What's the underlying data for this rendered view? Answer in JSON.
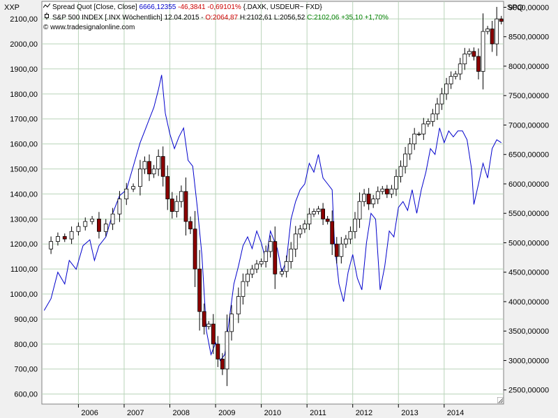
{
  "corner_left": "XXP",
  "corner_right": "SPQ",
  "legend": {
    "spread": {
      "name": "Spread Quot [Close, Close]",
      "value": "6666,12355",
      "change": "-46,3841",
      "change_pct": "-0,69101%",
      "formula": "{.DAXK, USDEUR~ FXD}"
    },
    "sp500": {
      "name": "S&P 500 INDEX [.INX Wöchentlich]",
      "date": "12.04.2015",
      "open": "O:2064,87",
      "high": "H:2102,61",
      "low": "L:2056,52",
      "close": "C:2102,06",
      "change": "+35,10",
      "change_pct": "+1,70%"
    },
    "copyright": "© www.tradesignalonline.com"
  },
  "colors": {
    "background": "#ffffff",
    "grid": "#b9d4b9",
    "spread_line": "#0000cc",
    "candle_up": "#ffffff",
    "candle_down": "#8b0000",
    "candle_border": "#000000"
  },
  "chart_data": {
    "type": "line",
    "left_axis": {
      "label": "XXP",
      "range": [
        560,
        2170
      ],
      "ticks": [
        "2100,00",
        "2000,00",
        "1900,00",
        "1800,00",
        "1700,00",
        "1600,00",
        "1500,00",
        "1400,00",
        "1300,00",
        "1200,00",
        "1100,00",
        "1000,00",
        "900,00",
        "800,00",
        "700,00",
        "600,00"
      ]
    },
    "right_axis": {
      "label": "SPQ",
      "range": [
        2260,
        9100
      ],
      "ticks": [
        "9000,00000",
        "8500,00000",
        "8000,00000",
        "7500,00000",
        "7000,00000",
        "6500,00000",
        "6000,00000",
        "5500,00000",
        "5000,00000",
        "4500,00000",
        "4000,00000",
        "3500,00000",
        "3000,00000",
        "2500,00000"
      ]
    },
    "x_axis": {
      "range": [
        2005.2,
        2015.3
      ],
      "tick_labels": [
        "2006",
        "2007",
        "2008",
        "2009",
        "2010",
        "2011",
        "2012",
        "2013",
        "2014"
      ]
    },
    "grid": true,
    "series": [
      {
        "name": "Spread Quot [Close, Close]",
        "axis": "right",
        "style": "line",
        "x": [
          2005.25,
          2005.4,
          2005.55,
          2005.7,
          2005.8,
          2005.95,
          2006.1,
          2006.25,
          2006.35,
          2006.45,
          2006.6,
          2006.75,
          2006.9,
          2007.05,
          2007.2,
          2007.35,
          2007.45,
          2007.55,
          2007.65,
          2007.75,
          2007.82,
          2007.9,
          2008.0,
          2008.1,
          2008.2,
          2008.3,
          2008.4,
          2008.5,
          2008.6,
          2008.7,
          2008.8,
          2008.9,
          2009.0,
          2009.1,
          2009.2,
          2009.3,
          2009.4,
          2009.5,
          2009.6,
          2009.7,
          2009.8,
          2009.9,
          2010.0,
          2010.1,
          2010.2,
          2010.35,
          2010.45,
          2010.55,
          2010.65,
          2010.75,
          2010.85,
          2010.95,
          2011.05,
          2011.15,
          2011.25,
          2011.35,
          2011.45,
          2011.55,
          2011.6,
          2011.7,
          2011.8,
          2011.9,
          2012.0,
          2012.1,
          2012.2,
          2012.3,
          2012.4,
          2012.5,
          2012.6,
          2012.7,
          2012.8,
          2012.9,
          2013.0,
          2013.1,
          2013.2,
          2013.3,
          2013.4,
          2013.5,
          2013.6,
          2013.7,
          2013.8,
          2013.9,
          2014.0,
          2014.1,
          2014.2,
          2014.3,
          2014.4,
          2014.5,
          2014.6,
          2014.65,
          2014.75,
          2014.85,
          2014.95,
          2015.05,
          2015.15,
          2015.25
        ],
        "y": [
          3850,
          4050,
          4500,
          4300,
          4700,
          4550,
          4950,
          5050,
          4700,
          4950,
          5100,
          5500,
          5800,
          5900,
          6300,
          6700,
          6900,
          7100,
          7300,
          7600,
          7850,
          7200,
          6850,
          6600,
          6800,
          6950,
          6400,
          6300,
          5600,
          4800,
          3500,
          3100,
          3300,
          3000,
          3100,
          3700,
          4300,
          4600,
          4950,
          5100,
          4900,
          5200,
          5000,
          4700,
          5200,
          4900,
          4500,
          4700,
          5400,
          5700,
          5900,
          6000,
          6350,
          6200,
          6500,
          6100,
          6000,
          5900,
          5000,
          4300,
          4000,
          4500,
          4800,
          4400,
          4200,
          5000,
          5500,
          5400,
          4200,
          4600,
          5200,
          5100,
          5600,
          5700,
          5550,
          5900,
          5500,
          5900,
          6200,
          6600,
          6500,
          6950,
          6700,
          6900,
          6800,
          6900,
          6900,
          6750,
          6250,
          5650,
          6000,
          6350,
          6100,
          6600,
          6750,
          6700
        ]
      },
      {
        "name": "S&P 500 INDEX [.INX Wöchentlich]",
        "axis": "left",
        "style": "candlestick",
        "x": [
          2005.25,
          2005.4,
          2005.55,
          2005.7,
          2005.85,
          2006.0,
          2006.15,
          2006.3,
          2006.45,
          2006.6,
          2006.75,
          2006.9,
          2007.05,
          2007.2,
          2007.35,
          2007.45,
          2007.55,
          2007.65,
          2007.75,
          2007.85,
          2007.95,
          2008.05,
          2008.15,
          2008.25,
          2008.35,
          2008.45,
          2008.55,
          2008.65,
          2008.75,
          2008.85,
          2008.95,
          2009.05,
          2009.15,
          2009.25,
          2009.35,
          2009.5,
          2009.6,
          2009.7,
          2009.8,
          2009.9,
          2010.0,
          2010.1,
          2010.2,
          2010.3,
          2010.45,
          2010.55,
          2010.65,
          2010.75,
          2010.85,
          2010.95,
          2011.05,
          2011.15,
          2011.25,
          2011.35,
          2011.45,
          2011.55,
          2011.65,
          2011.75,
          2011.85,
          2011.95,
          2012.05,
          2012.15,
          2012.25,
          2012.35,
          2012.45,
          2012.55,
          2012.65,
          2012.75,
          2012.85,
          2012.95,
          2013.05,
          2013.15,
          2013.25,
          2013.35,
          2013.45,
          2013.55,
          2013.65,
          2013.75,
          2013.85,
          2013.95,
          2014.05,
          2014.15,
          2014.25,
          2014.35,
          2014.45,
          2014.55,
          2014.65,
          2014.75,
          2014.85,
          2014.95,
          2015.05,
          2015.15,
          2015.25
        ],
        "y": [
          1180,
          1210,
          1230,
          1220,
          1250,
          1270,
          1290,
          1300,
          1250,
          1280,
          1320,
          1380,
          1420,
          1430,
          1500,
          1530,
          1480,
          1500,
          1550,
          1470,
          1380,
          1330,
          1370,
          1410,
          1290,
          1260,
          1100,
          930,
          870,
          880,
          800,
          740,
          700,
          850,
          920,
          990,
          1050,
          1080,
          1100,
          1120,
          1130,
          1170,
          1210,
          1080,
          1090,
          1130,
          1180,
          1240,
          1260,
          1280,
          1320,
          1330,
          1340,
          1300,
          1290,
          1200,
          1150,
          1200,
          1220,
          1250,
          1300,
          1370,
          1400,
          1360,
          1380,
          1410,
          1420,
          1400,
          1420,
          1470,
          1510,
          1560,
          1600,
          1640,
          1640,
          1680,
          1690,
          1720,
          1760,
          1800,
          1840,
          1870,
          1880,
          1920,
          1960,
          1970,
          1950,
          1890,
          2050,
          2060,
          2000,
          2100,
          2090
        ]
      }
    ]
  }
}
